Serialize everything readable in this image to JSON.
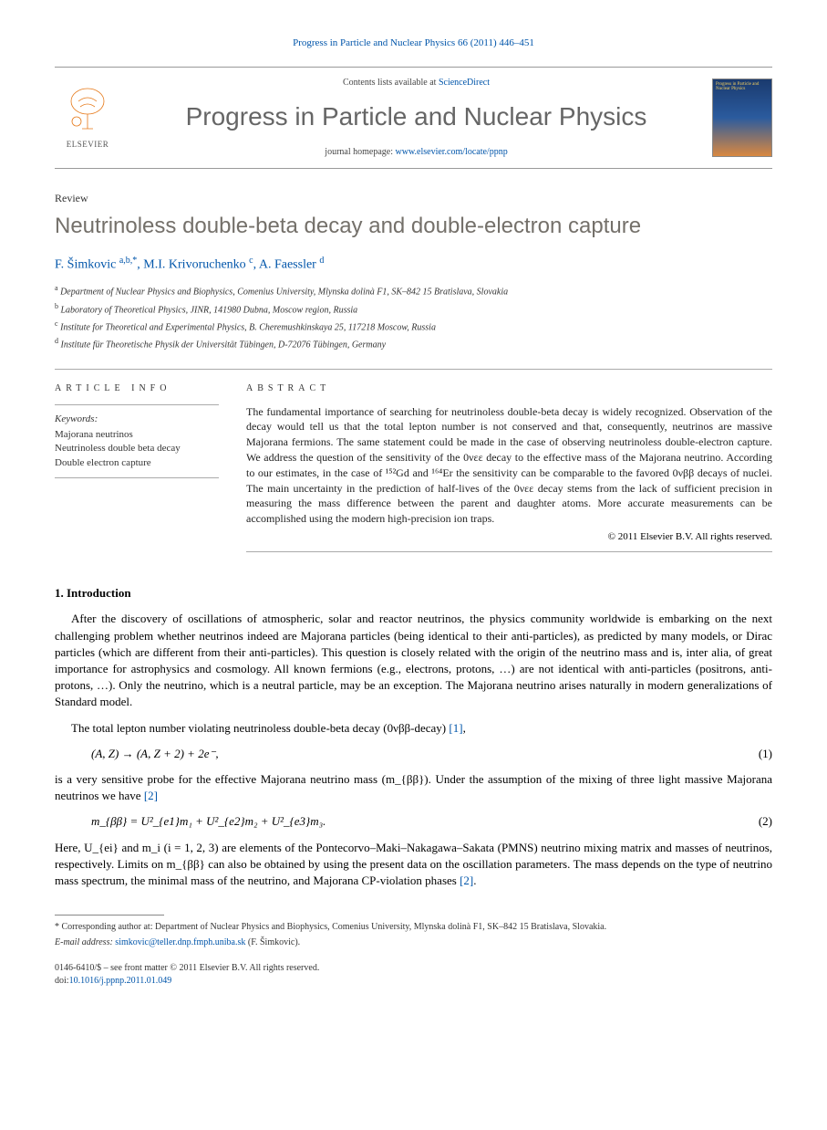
{
  "journal_ref": "Progress in Particle and Nuclear Physics 66 (2011) 446–451",
  "header": {
    "contents_prefix": "Contents lists available at ",
    "contents_link": "ScienceDirect",
    "journal_title": "Progress in Particle and Nuclear Physics",
    "homepage_prefix": "journal homepage: ",
    "homepage_link": "www.elsevier.com/locate/ppnp",
    "elsevier_brand": "ELSEVIER",
    "cover_title": "Progress in Particle and Nuclear Physics"
  },
  "article": {
    "type": "Review",
    "title": "Neutrinoless double-beta decay and double-electron capture",
    "authors_html": "F. Šimkovic <span class='sup'>a,b,*</span>, M.I. Krivoruchenko <span class='sup'>c</span>, A. Faessler <span class='sup'>d</span>",
    "affiliations": [
      {
        "sup": "a",
        "text": "Department of Nuclear Physics and Biophysics, Comenius University, Mlynska dolinà F1, SK–842 15 Bratislava, Slovakia"
      },
      {
        "sup": "b",
        "text": "Laboratory of Theoretical Physics, JINR, 141980 Dubna, Moscow region, Russia"
      },
      {
        "sup": "c",
        "text": "Institute for Theoretical and Experimental Physics, B. Cheremushkinskaya 25, 117218 Moscow, Russia"
      },
      {
        "sup": "d",
        "text": "Institute für Theoretische Physik der Universität Tübingen, D-72076 Tübingen, Germany"
      }
    ]
  },
  "info": {
    "head": "ARTICLE INFO",
    "keywords_label": "Keywords:",
    "keywords": [
      "Majorana neutrinos",
      "Neutrinoless double beta decay",
      "Double electron capture"
    ]
  },
  "abstract": {
    "head": "ABSTRACT",
    "text": "The fundamental importance of searching for neutrinoless double-beta decay is widely recognized. Observation of the decay would tell us that the total lepton number is not conserved and that, consequently, neutrinos are massive Majorana fermions. The same statement could be made in the case of observing neutrinoless double-electron capture. We address the question of the sensitivity of the 0νεε decay to the effective mass of the Majorana neutrino. According to our estimates, in the case of ¹⁵²Gd and ¹⁶⁴Er the sensitivity can be comparable to the favored 0νββ decays of nuclei. The main uncertainty in the prediction of half-lives of the 0νεε decay stems from the lack of sufficient precision in measuring the mass difference between the parent and daughter atoms. More accurate measurements can be accomplished using the modern high-precision ion traps.",
    "copyright": "© 2011 Elsevier B.V. All rights reserved."
  },
  "section1": {
    "head": "1.  Introduction",
    "p1": "After the discovery of oscillations of atmospheric, solar and reactor neutrinos, the physics community worldwide is embarking on the next challenging problem whether neutrinos indeed are Majorana particles (being identical to their anti-particles), as predicted by many models, or Dirac particles (which are different from their anti-particles). This question is closely related with the origin of the neutrino mass and is, inter alia, of great importance for astrophysics and cosmology. All known fermions (e.g., electrons, protons, …) are not identical with anti-particles (positrons, anti-protons, …). Only the neutrino, which is a neutral particle, may be an exception. The Majorana neutrino arises naturally in modern generalizations of Standard model.",
    "p2_pre": "The total lepton number violating neutrinoless double-beta decay (0νββ-decay) ",
    "p2_ref": "[1]",
    "p2_post": ",",
    "eq1": "(A, Z) → (A, Z + 2) + 2e⁻,",
    "eq1_num": "(1)",
    "p3_pre": "is a very sensitive probe for the effective Majorana neutrino mass (m_{ββ}). Under the assumption of the mixing of three light massive Majorana neutrinos we have ",
    "p3_ref": "[2]",
    "eq2": "m_{ββ} = U²_{e1}m₁ + U²_{e2}m₂ + U²_{e3}m₃.",
    "eq2_num": "(2)",
    "p4_pre": "Here, U_{ei} and m_i (i = 1, 2, 3) are elements of the Pontecorvo–Maki–Nakagawa–Sakata (PMNS) neutrino mixing matrix and masses of neutrinos, respectively. Limits on m_{ββ} can also be obtained by using the present data on the oscillation parameters. The mass depends on the type of neutrino mass spectrum, the minimal mass of the neutrino, and Majorana CP-violation phases ",
    "p4_ref": "[2]",
    "p4_post": "."
  },
  "footnotes": {
    "corr": "* Corresponding author at: Department of Nuclear Physics and Biophysics, Comenius University, Mlynska dolinà F1, SK–842 15 Bratislava, Slovakia.",
    "email_label": "E-mail address: ",
    "email": "simkovic@teller.dnp.fmph.uniba.sk",
    "email_person": " (F. Šimkovic)."
  },
  "footer": {
    "line1": "0146-6410/$ – see front matter © 2011 Elsevier B.V. All rights reserved.",
    "doi_label": "doi:",
    "doi": "10.1016/j.ppnp.2011.01.049"
  },
  "colors": {
    "link": "#0055aa",
    "title_gray": "#74706a",
    "elsevier_orange": "#e67817"
  }
}
